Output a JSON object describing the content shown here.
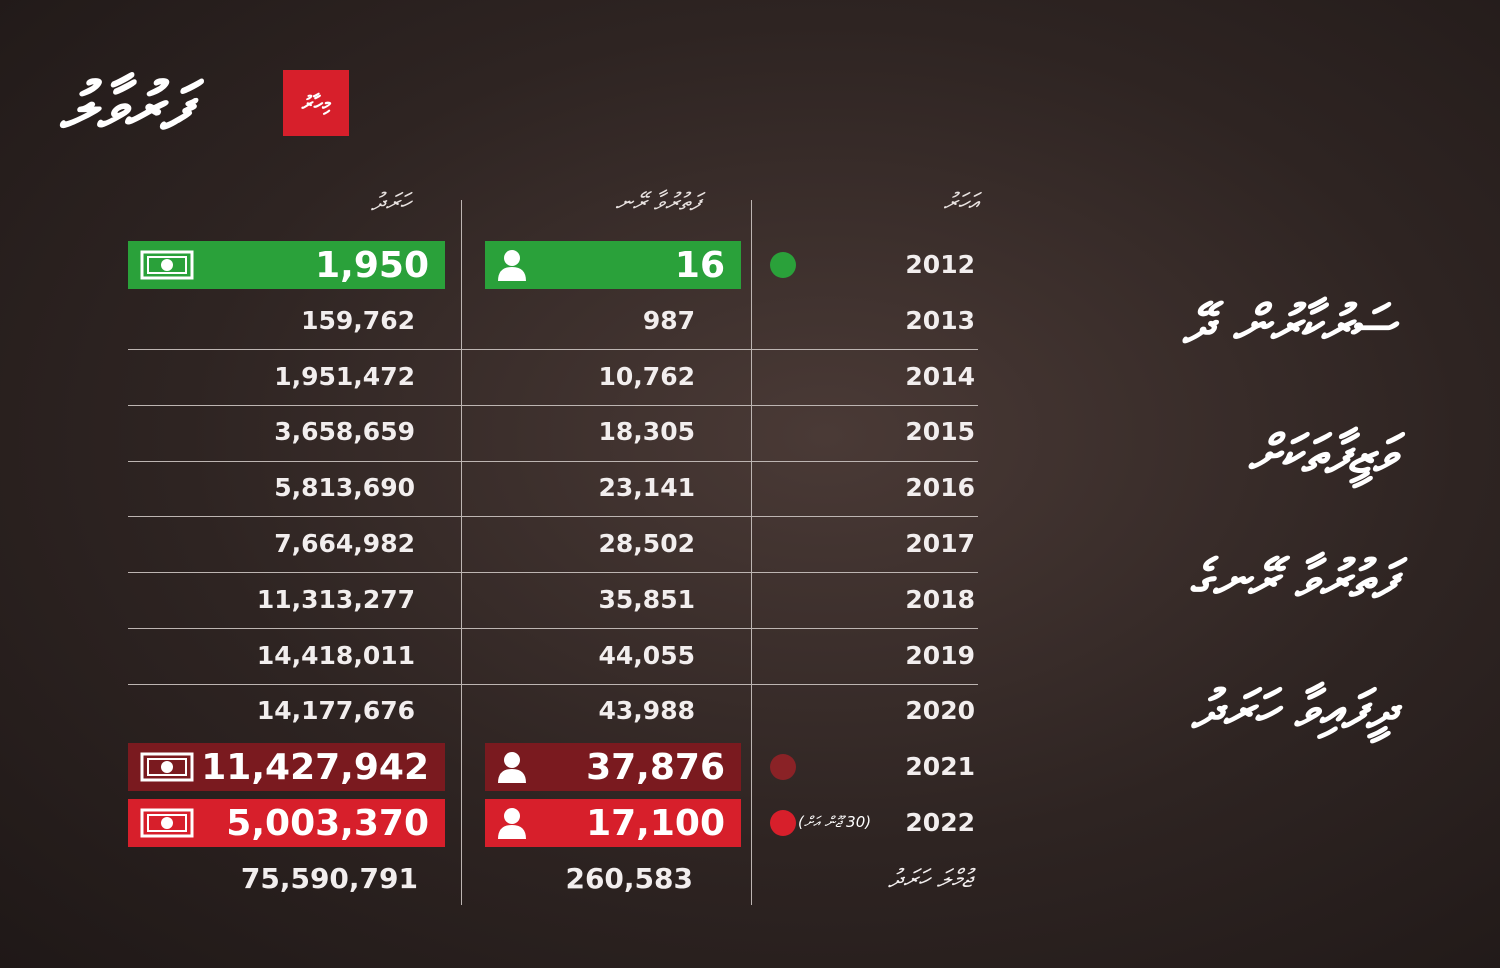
{
  "header": {
    "logo": "ފަރުވާލު",
    "badge": "މިހާރު"
  },
  "title_lines": [
    "ސަރުކާރުން ދޭ",
    "ވަޒީފާތަކަށް",
    "ފަތުރުވާ ރޭނގެ",
    "ދީފައިވާ ހަރަދު"
  ],
  "table": {
    "headers": [
      "އަހަރު",
      "ފަތުރުވާ ރޭނ",
      "ހަރަދު"
    ],
    "rows": [
      [
        "2012",
        "16",
        "1,950"
      ],
      [
        "2013",
        "987",
        "159,762"
      ],
      [
        "2014",
        "10,762",
        "1,951,472"
      ],
      [
        "2015",
        "18,305",
        "3,658,659"
      ],
      [
        "2016",
        "23,141",
        "5,813,690"
      ],
      [
        "2017",
        "28,502",
        "7,664,982"
      ],
      [
        "2018",
        "35,851",
        "11,313,277"
      ],
      [
        "2019",
        "44,055",
        "14,418,011"
      ],
      [
        "2020",
        "43,988",
        "14,177,676"
      ],
      [
        "2021",
        "37,876",
        "11,427,942"
      ],
      [
        "2022",
        "17,100",
        "5,003,370"
      ]
    ],
    "note_2022": "(30 ޖޫން އަށް)",
    "total": [
      "ޖުމްލަ ހަރަދު",
      "260,583",
      "75,590,791"
    ]
  }
}
